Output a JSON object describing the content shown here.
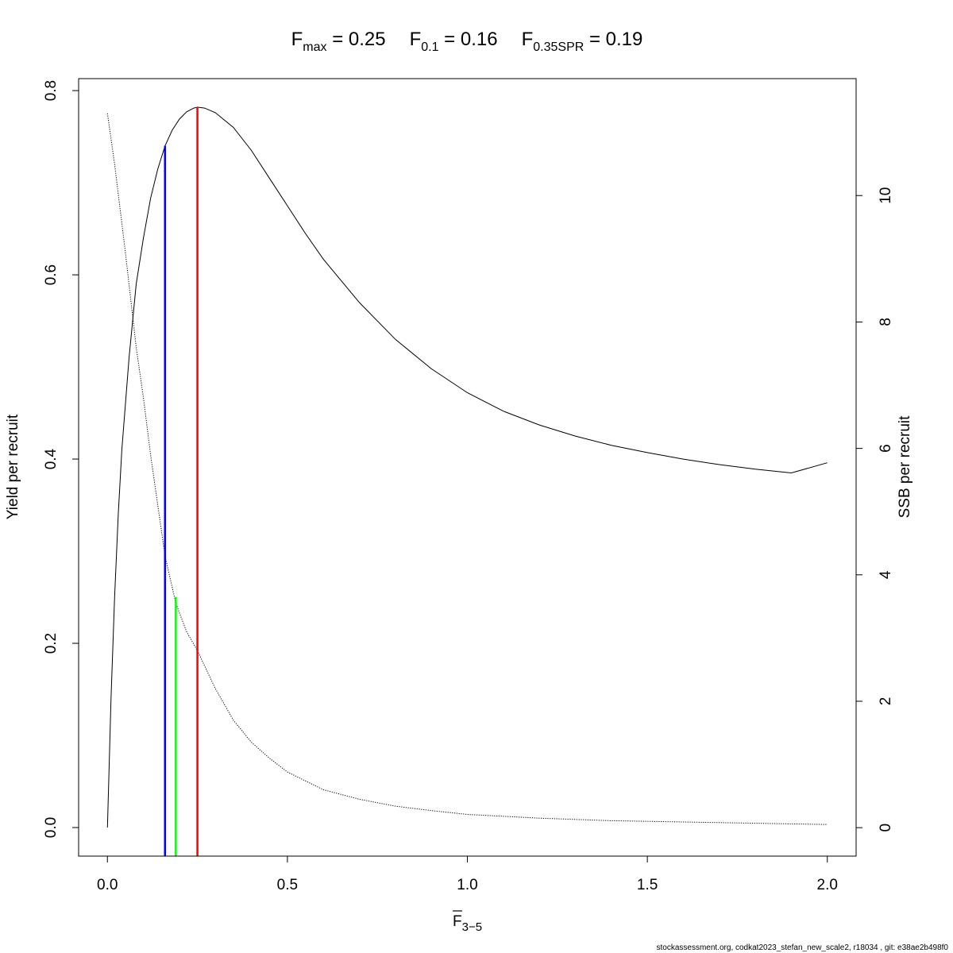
{
  "chart_data": {
    "type": "line",
    "title": {
      "parts": [
        {
          "base": "F",
          "sub": "max",
          "eq": " = 0.25"
        },
        {
          "base": "F",
          "sub": "0.1",
          "eq": " = 0.16"
        },
        {
          "base": "F",
          "sub": "0.35SPR",
          "eq": " = 0.19"
        }
      ]
    },
    "xlabel": {
      "base": "F",
      "sub": "3−5",
      "overline": true
    },
    "ylabel_left": "Yield per recruit",
    "ylabel_right": "SSB per recruit",
    "xlim": [
      -0.08,
      2.08
    ],
    "ylim_left": [
      -0.031,
      0.813
    ],
    "ylim_right": [
      -0.45,
      11.85
    ],
    "x_ticks": [
      {
        "value": 0.0,
        "label": "0.0"
      },
      {
        "value": 0.5,
        "label": "0.5"
      },
      {
        "value": 1.0,
        "label": "1.0"
      },
      {
        "value": 1.5,
        "label": "1.5"
      },
      {
        "value": 2.0,
        "label": "2.0"
      }
    ],
    "y_left_ticks": [
      {
        "value": 0.0,
        "label": "0.0"
      },
      {
        "value": 0.2,
        "label": "0.2"
      },
      {
        "value": 0.4,
        "label": "0.4"
      },
      {
        "value": 0.6,
        "label": "0.6"
      },
      {
        "value": 0.8,
        "label": "0.8"
      }
    ],
    "y_right_ticks": [
      {
        "value": 0,
        "label": "0"
      },
      {
        "value": 2,
        "label": "2"
      },
      {
        "value": 4,
        "label": "4"
      },
      {
        "value": 6,
        "label": "6"
      },
      {
        "value": 8,
        "label": "8"
      },
      {
        "value": 10,
        "label": "10"
      }
    ],
    "series": [
      {
        "axis": "left",
        "style": "solid",
        "color": "#000000",
        "points": [
          [
            0.0,
            0.0
          ],
          [
            0.01,
            0.14
          ],
          [
            0.02,
            0.25
          ],
          [
            0.03,
            0.34
          ],
          [
            0.04,
            0.41
          ],
          [
            0.06,
            0.51
          ],
          [
            0.08,
            0.59
          ],
          [
            0.1,
            0.64
          ],
          [
            0.12,
            0.683
          ],
          [
            0.14,
            0.715
          ],
          [
            0.16,
            0.74
          ],
          [
            0.18,
            0.757
          ],
          [
            0.2,
            0.769
          ],
          [
            0.22,
            0.777
          ],
          [
            0.24,
            0.781
          ],
          [
            0.25,
            0.782
          ],
          [
            0.27,
            0.781
          ],
          [
            0.3,
            0.776
          ],
          [
            0.35,
            0.76
          ],
          [
            0.4,
            0.735
          ],
          [
            0.45,
            0.705
          ],
          [
            0.5,
            0.675
          ],
          [
            0.55,
            0.645
          ],
          [
            0.6,
            0.617
          ],
          [
            0.7,
            0.57
          ],
          [
            0.8,
            0.53
          ],
          [
            0.9,
            0.498
          ],
          [
            1.0,
            0.472
          ],
          [
            1.1,
            0.452
          ],
          [
            1.2,
            0.437
          ],
          [
            1.3,
            0.425
          ],
          [
            1.4,
            0.415
          ],
          [
            1.5,
            0.407
          ],
          [
            1.6,
            0.4
          ],
          [
            1.7,
            0.394
          ],
          [
            1.8,
            0.389
          ],
          [
            1.9,
            0.385
          ],
          [
            2.0,
            0.396
          ]
        ]
      },
      {
        "axis": "right",
        "style": "dotted",
        "color": "#000000",
        "points": [
          [
            0.0,
            11.3
          ],
          [
            0.02,
            10.5
          ],
          [
            0.05,
            9.1
          ],
          [
            0.08,
            7.6
          ],
          [
            0.1,
            6.8
          ],
          [
            0.12,
            5.9
          ],
          [
            0.14,
            5.1
          ],
          [
            0.16,
            4.3
          ],
          [
            0.19,
            3.55
          ],
          [
            0.22,
            3.1
          ],
          [
            0.25,
            2.8
          ],
          [
            0.3,
            2.2
          ],
          [
            0.35,
            1.7
          ],
          [
            0.4,
            1.35
          ],
          [
            0.45,
            1.1
          ],
          [
            0.5,
            0.88
          ],
          [
            0.6,
            0.6
          ],
          [
            0.7,
            0.45
          ],
          [
            0.8,
            0.34
          ],
          [
            0.9,
            0.27
          ],
          [
            1.0,
            0.21
          ],
          [
            1.2,
            0.15
          ],
          [
            1.4,
            0.11
          ],
          [
            1.6,
            0.09
          ],
          [
            1.8,
            0.07
          ],
          [
            2.0,
            0.05
          ]
        ]
      }
    ],
    "reference_lines": [
      {
        "x": 0.16,
        "axis": "left",
        "top": 0.74,
        "color": "#0000ff"
      },
      {
        "x": 0.19,
        "axis": "right",
        "top": 3.65,
        "color": "#00ff00"
      },
      {
        "x": 0.25,
        "axis": "left",
        "top": 0.782,
        "color": "#ff0000"
      }
    ]
  },
  "footer": "stockassessment.org, codkat2023_stefan_new_scale2, r18034 , git: e38ae2b498f0"
}
